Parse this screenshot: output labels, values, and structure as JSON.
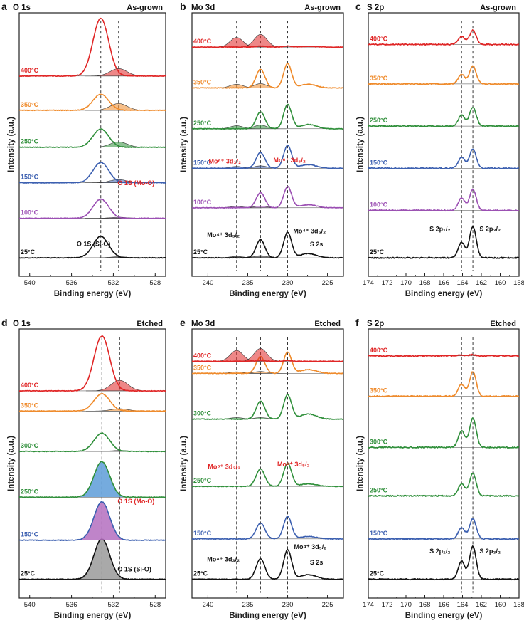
{
  "colors": {
    "25": "#111111",
    "100": "#9b4fb3",
    "150": "#3b5fb0",
    "250": "#2f8f3a",
    "300": "#2f8f3a",
    "350": "#ef8a2a",
    "400": "#e02525"
  },
  "chart_data": [
    {
      "panel": "a",
      "title": "O 1s",
      "condition": "As-grown",
      "type": "line",
      "xlabel": "Binding energy (eV)",
      "ylabel": "Intensity (a.u.)",
      "xlim": [
        541,
        527
      ],
      "xticks": [
        540,
        536,
        532,
        528
      ],
      "ref_lines": [
        533.2,
        531.5
      ],
      "peaks_template": [
        {
          "c": 533.2,
          "w": 0.75,
          "main": true
        },
        {
          "c": 531.5,
          "w": 0.8,
          "fit": true
        }
      ],
      "series": [
        {
          "temp": "25",
          "label": "25°C",
          "amps": [
            1.0,
            0.05
          ]
        },
        {
          "temp": "100",
          "label": "100°C",
          "amps": [
            0.9,
            0.05
          ]
        },
        {
          "temp": "150",
          "label": "150°C",
          "amps": [
            0.95,
            0.15
          ]
        },
        {
          "temp": "250",
          "label": "250°C",
          "amps": [
            0.85,
            0.25
          ]
        },
        {
          "temp": "350",
          "label": "350°C",
          "amps": [
            0.75,
            0.32
          ]
        },
        {
          "temp": "400",
          "label": "400°C",
          "amps": [
            2.7,
            0.35
          ]
        }
      ],
      "annotations": [
        {
          "text": "O 1S (Mo-O)",
          "color": "#e02525",
          "x": 531.6,
          "y": 3.4
        },
        {
          "text": "O 1S (Si-O)",
          "color": "#111111",
          "x": 535.5,
          "y": 0.55
        }
      ]
    },
    {
      "panel": "b",
      "title": "Mo 3d",
      "condition": "As-grown",
      "type": "line",
      "xlabel": "Binding energy (eV)",
      "ylabel": "Intensity (a.u.)",
      "xlim": [
        242,
        223
      ],
      "xticks": [
        240,
        235,
        230,
        225
      ],
      "ref_lines": [
        236.4,
        233.4,
        230.0
      ],
      "peaks_template": [
        {
          "c": 233.4,
          "w": 0.55,
          "main": true
        },
        {
          "c": 230.0,
          "w": 0.5,
          "main": true
        },
        {
          "c": 227.4,
          "w": 1.0
        },
        {
          "c": 236.4,
          "w": 0.8,
          "fit": true
        },
        {
          "c": 233.4,
          "w": 0.8,
          "fit": true
        }
      ],
      "series": [
        {
          "temp": "25",
          "label": "25°C",
          "amps": [
            1.5,
            2.1,
            0.35,
            0.12,
            0.18
          ]
        },
        {
          "temp": "100",
          "label": "100°C",
          "amps": [
            1.25,
            1.75,
            0.25,
            0.12,
            0.15
          ]
        },
        {
          "temp": "150",
          "label": "150°C",
          "amps": [
            1.3,
            1.9,
            0.3,
            0.15,
            0.2
          ]
        },
        {
          "temp": "250",
          "label": "250°C",
          "amps": [
            1.4,
            2.0,
            0.35,
            0.25,
            0.3
          ]
        },
        {
          "temp": "350",
          "label": "350°C",
          "amps": [
            1.55,
            2.0,
            0.3,
            0.3,
            0.35
          ]
        },
        {
          "temp": "400",
          "label": "400°C",
          "amps": [
            0.08,
            0.08,
            0.05,
            0.8,
            1.05
          ]
        }
      ],
      "annotations": [
        {
          "text": "Mo⁶⁺ 3d₃/₂",
          "color": "#e02525",
          "x": 239.9,
          "y": 7.8
        },
        {
          "text": "Mo⁶⁺ 3d₅/₂",
          "color": "#e02525",
          "x": 231.8,
          "y": 7.9
        },
        {
          "text": "Mo⁴⁺ 3d₃/₂",
          "color": "#111111",
          "x": 240.1,
          "y": 1.7
        },
        {
          "text": "Mo⁴⁺ 3d₅/₂",
          "color": "#111111",
          "x": 229.3,
          "y": 2.05
        },
        {
          "text": "S 2s",
          "color": "#111111",
          "x": 227.2,
          "y": 0.95
        }
      ]
    },
    {
      "panel": "c",
      "title": "S 2p",
      "condition": "As-grown",
      "type": "line",
      "xlabel": "Binding energy (eV)",
      "ylabel": "Intensity (a.u.)",
      "xlim": [
        174,
        158
      ],
      "xticks": [
        174,
        172,
        170,
        168,
        166,
        164,
        162,
        160,
        158
      ],
      "ref_lines": [
        164.1,
        162.9
      ],
      "peaks_template": [
        {
          "c": 164.1,
          "w": 0.35,
          "main": true
        },
        {
          "c": 162.9,
          "w": 0.35,
          "main": true
        }
      ],
      "series": [
        {
          "temp": "25",
          "label": "25°C",
          "amps": [
            1.0,
            2.0
          ]
        },
        {
          "temp": "100",
          "label": "100°C",
          "amps": [
            0.8,
            1.35
          ]
        },
        {
          "temp": "150",
          "label": "150°C",
          "amps": [
            0.7,
            1.25
          ]
        },
        {
          "temp": "250",
          "label": "250°C",
          "amps": [
            0.7,
            1.2
          ]
        },
        {
          "temp": "350",
          "label": "350°C",
          "amps": [
            0.6,
            1.15
          ]
        },
        {
          "temp": "400",
          "label": "400°C",
          "amps": [
            0.5,
            0.9
          ]
        }
      ],
      "annotations": [
        {
          "text": "S 2p₁/₂",
          "color": "#111111",
          "x": 167.5,
          "y": 1.7
        },
        {
          "text": "S 2p₃/₂",
          "color": "#111111",
          "x": 162.2,
          "y": 1.7
        }
      ]
    },
    {
      "panel": "d",
      "title": "O 1s",
      "condition": "Etched",
      "type": "line",
      "xlabel": "Binding energy (eV)",
      "ylabel": "Intensity (a.u.)",
      "xlim": [
        541,
        527
      ],
      "xticks": [
        540,
        536,
        532,
        528
      ],
      "ref_lines": [
        533.1,
        531.4
      ],
      "peaks_template": [
        {
          "c": 533.1,
          "w": 0.75,
          "main": true,
          "fillfit": true
        },
        {
          "c": 531.4,
          "w": 0.8,
          "fit": true
        }
      ],
      "series": [
        {
          "temp": "25",
          "label": "25°C",
          "amps": [
            2.1,
            0.0
          ],
          "mainfill": "#9a9a9a"
        },
        {
          "temp": "150",
          "label": "150°C",
          "amps": [
            2.0,
            0.0
          ],
          "mainfill": "#b46fc0"
        },
        {
          "temp": "250",
          "label": "250°C",
          "amps": [
            1.85,
            0.0
          ],
          "mainfill": "#5d9cd8"
        },
        {
          "temp": "300",
          "label": "300°C",
          "amps": [
            0.95,
            0.05
          ]
        },
        {
          "temp": "350",
          "label": "350°C",
          "amps": [
            0.9,
            0.12
          ]
        },
        {
          "temp": "400",
          "label": "400°C",
          "amps": [
            2.85,
            0.55
          ]
        }
      ],
      "annotations": [
        {
          "text": "O 1S (Mo-O)",
          "color": "#e02525",
          "x": 531.6,
          "y": 3.95
        },
        {
          "text": "O 1S (Si-O)",
          "color": "#111111",
          "x": 531.6,
          "y": 0.4
        }
      ]
    },
    {
      "panel": "e",
      "title": "Mo 3d",
      "condition": "Etched",
      "type": "line",
      "xlabel": "Binding energy (eV)",
      "ylabel": "Intensity (a.u.)",
      "xlim": [
        242,
        223
      ],
      "xticks": [
        240,
        235,
        230,
        225
      ],
      "ref_lines": [
        236.4,
        233.4,
        230.0
      ],
      "peaks_template": [
        {
          "c": 233.4,
          "w": 0.55,
          "main": true
        },
        {
          "c": 230.0,
          "w": 0.5,
          "main": true
        },
        {
          "c": 227.4,
          "w": 1.0
        },
        {
          "c": 236.4,
          "w": 0.8,
          "fit": true
        },
        {
          "c": 233.4,
          "w": 0.8,
          "fit": true
        }
      ],
      "series": [
        {
          "temp": "25",
          "label": "25°C",
          "amps": [
            1.6,
            2.3,
            0.35,
            0.0,
            0.0
          ]
        },
        {
          "temp": "150",
          "label": "150°C",
          "amps": [
            1.25,
            1.75,
            0.2,
            0.0,
            0.0
          ]
        },
        {
          "temp": "250",
          "label": "250°C",
          "amps": [
            1.35,
            1.8,
            0.2,
            0.0,
            0.0
          ]
        },
        {
          "temp": "300",
          "label": "300°C",
          "amps": [
            1.4,
            1.9,
            0.4,
            0.12,
            0.12
          ]
        },
        {
          "temp": "350",
          "label": "350°C",
          "amps": [
            1.3,
            1.65,
            0.3,
            0.12,
            0.15
          ]
        },
        {
          "temp": "400",
          "label": "400°C",
          "amps": [
            0.05,
            0.05,
            0.0,
            0.85,
            1.0
          ]
        }
      ],
      "annotations": [
        {
          "text": "Mo⁶⁺ 3d₃/₂",
          "color": "#e02525",
          "x": 240.0,
          "y": 8.6
        },
        {
          "text": "Mo⁶⁺ 3d₅/₂",
          "color": "#e02525",
          "x": 231.3,
          "y": 8.8
        },
        {
          "text": "Mo⁴⁺ 3d₃/₂",
          "color": "#111111",
          "x": 240.1,
          "y": 1.4
        },
        {
          "text": "Mo⁴⁺ 3d₅/₂",
          "color": "#111111",
          "x": 229.2,
          "y": 2.35
        },
        {
          "text": "S 2s",
          "color": "#111111",
          "x": 227.2,
          "y": 1.15
        }
      ]
    },
    {
      "panel": "f",
      "title": "S 2p",
      "condition": "Etched",
      "type": "line",
      "xlabel": "Binding energy (eV)",
      "ylabel": "Intensity (a.u.)",
      "xlim": [
        174,
        158
      ],
      "xticks": [
        174,
        172,
        170,
        168,
        166,
        164,
        162,
        160,
        158
      ],
      "ref_lines": [
        164.1,
        162.9
      ],
      "peaks_template": [
        {
          "c": 164.1,
          "w": 0.35,
          "main": true
        },
        {
          "c": 162.9,
          "w": 0.35,
          "main": true
        }
      ],
      "series": [
        {
          "temp": "25",
          "label": "25°C",
          "amps": [
            1.2,
            2.2
          ]
        },
        {
          "temp": "150",
          "label": "150°C",
          "amps": [
            0.75,
            1.35
          ]
        },
        {
          "temp": "250",
          "label": "250°C",
          "amps": [
            0.8,
            1.5
          ]
        },
        {
          "temp": "300",
          "label": "300°C",
          "amps": [
            1.1,
            1.95
          ]
        },
        {
          "temp": "350",
          "label": "350°C",
          "amps": [
            0.8,
            1.65
          ]
        },
        {
          "temp": "400",
          "label": "400°C",
          "amps": [
            0.05,
            0.08
          ]
        }
      ],
      "annotations": [
        {
          "text": "S 2p₁/₂",
          "color": "#111111",
          "x": 167.5,
          "y": 1.75
        },
        {
          "text": "S 2p₃/₂",
          "color": "#111111",
          "x": 162.2,
          "y": 1.75
        }
      ]
    }
  ]
}
